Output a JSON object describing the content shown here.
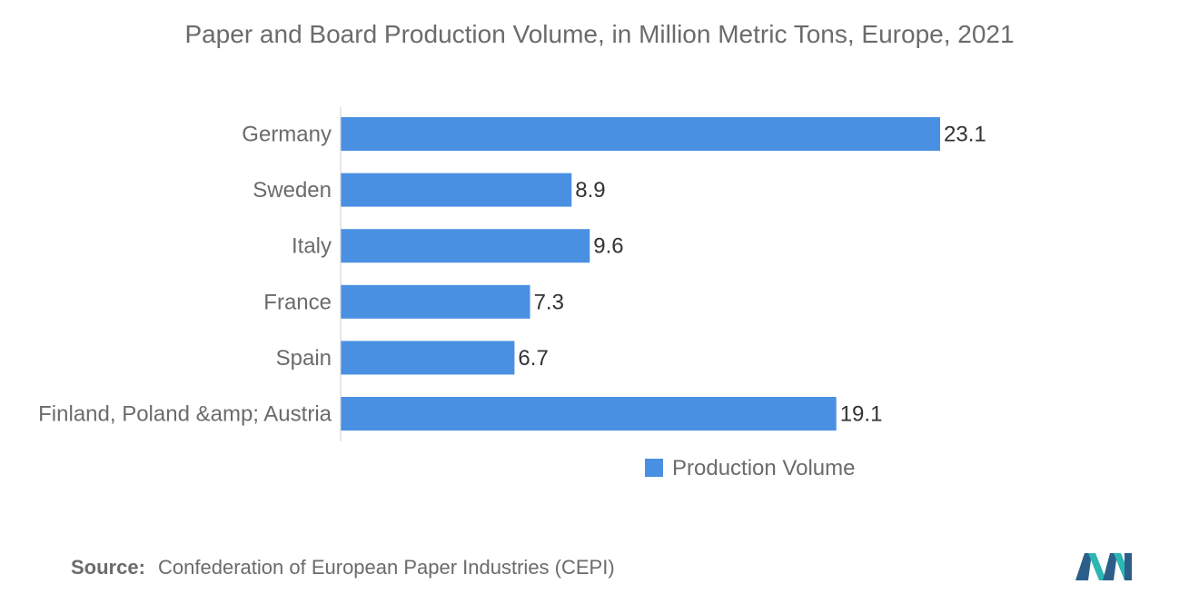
{
  "chart_data": {
    "type": "bar",
    "orientation": "horizontal",
    "title": "Paper and Board Production Volume, in Million Metric Tons, Europe, 2021",
    "categories": [
      "Germany",
      "Sweden",
      "Italy",
      "France",
      "Spain",
      "Finland, Poland &amp; Austria"
    ],
    "series": [
      {
        "name": "Production Volume",
        "values": [
          23.1,
          8.9,
          9.6,
          7.3,
          6.7,
          19.1
        ],
        "labels": [
          "23.1",
          "8.9",
          "9.6",
          "7.3",
          "6.7",
          "19.1"
        ],
        "color": "#4a90e2"
      }
    ],
    "xlim": [
      0,
      23.1
    ],
    "grid": false,
    "legend_position": "bottom-right"
  },
  "source": {
    "label": "Source:",
    "text": "Confederation of European Paper Industries (CEPI)"
  },
  "colors": {
    "bar": "#4a90e2",
    "axis": "#cccccc",
    "text": "#6b6b6b",
    "label_text": "#333333",
    "logo_teal": "#2bb6b3",
    "logo_blue": "#2b5f8a"
  }
}
